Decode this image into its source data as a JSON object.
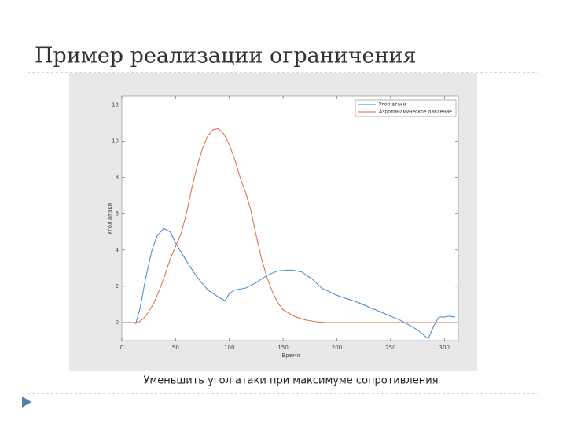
{
  "slide": {
    "title": "Пример реализации ограничения",
    "caption": "Уменьшить угол атаки при максимуме сопротивления"
  },
  "chart_data": {
    "type": "line",
    "x_label": "Время",
    "y_label": "Угол атаки",
    "xlim": [
      0,
      313
    ],
    "ylim": [
      -1,
      12.5
    ],
    "xticks": [
      0,
      50,
      100,
      150,
      200,
      250,
      300
    ],
    "yticks": [
      0,
      2,
      4,
      6,
      8,
      10,
      12
    ],
    "legend": "upper right",
    "series": [
      {
        "name": "Угол атаки",
        "color": "#3a86d4",
        "x": [
          0,
          10,
          13,
          17,
          22,
          28,
          33,
          39,
          45,
          50,
          60,
          70,
          80,
          90,
          96,
          100,
          105,
          115,
          125,
          135,
          145,
          157,
          167,
          177,
          186,
          200,
          220,
          240,
          260,
          275,
          285,
          290,
          295,
          300,
          305,
          310
        ],
        "values": [
          0,
          0,
          -0.05,
          0.8,
          2.4,
          4,
          4.8,
          5.2,
          5,
          4.4,
          3.4,
          2.5,
          1.8,
          1.4,
          1.2,
          1.6,
          1.8,
          1.9,
          2.2,
          2.6,
          2.85,
          2.9,
          2.8,
          2.4,
          1.9,
          1.5,
          1.1,
          0.6,
          0.1,
          -0.4,
          -0.9,
          -0.2,
          0.3,
          0.3,
          0.35,
          0.3
        ]
      },
      {
        "name": "Аэродинамическое давление",
        "color": "#e0673a",
        "x": [
          0,
          15,
          20,
          25,
          30,
          35,
          40,
          45,
          50,
          55,
          60,
          65,
          70,
          75,
          80,
          85,
          90,
          95,
          100,
          105,
          110,
          115,
          120,
          125,
          130,
          135,
          140,
          145,
          150,
          160,
          170,
          180,
          190,
          200,
          250,
          300,
          310
        ],
        "values": [
          0,
          0,
          0.2,
          0.6,
          1.1,
          1.8,
          2.6,
          3.5,
          4.2,
          4.9,
          6,
          7.4,
          8.6,
          9.6,
          10.3,
          10.65,
          10.7,
          10.4,
          9.8,
          9,
          8,
          7.2,
          6.2,
          4.8,
          3.5,
          2.5,
          1.7,
          1.1,
          0.7,
          0.35,
          0.15,
          0.05,
          0,
          0,
          0,
          0,
          0
        ]
      }
    ]
  }
}
